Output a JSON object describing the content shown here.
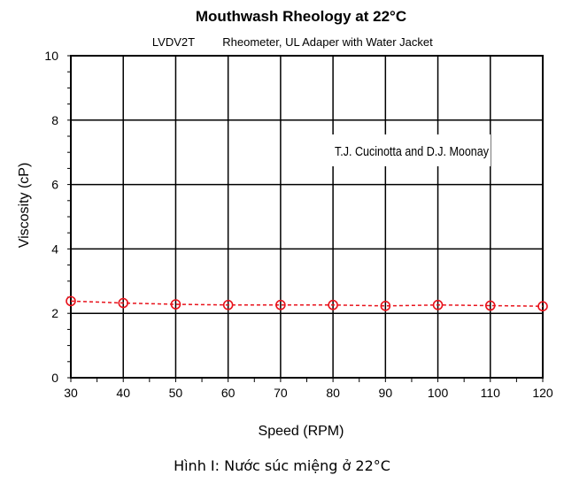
{
  "chart_data": {
    "type": "line",
    "title": "Mouthwash Rheology at 22°C",
    "instrument": "LVDV2T",
    "subtitle": "Rheometer, UL Adaper with Water Jacket",
    "annotation": "T.J. Cucinotta and D.J. Moonay",
    "xlabel": "Speed (RPM)",
    "ylabel": "Viscosity (cP)",
    "xlim": [
      30,
      120
    ],
    "ylim": [
      0,
      10
    ],
    "xticks": [
      30,
      40,
      50,
      60,
      70,
      80,
      90,
      100,
      110,
      120
    ],
    "yticks": [
      0,
      2,
      4,
      6,
      8,
      10
    ],
    "grid": true,
    "line_style": "dashed",
    "marker": "open-circle",
    "color": "#e8121b",
    "x": [
      30,
      40,
      50,
      60,
      70,
      80,
      90,
      100,
      110,
      120
    ],
    "series": [
      {
        "values": [
          2.38,
          2.32,
          2.28,
          2.26,
          2.26,
          2.26,
          2.23,
          2.26,
          2.24,
          2.22
        ]
      }
    ]
  },
  "caption": "Hình I:  Nước súc miệng ở 22°C"
}
